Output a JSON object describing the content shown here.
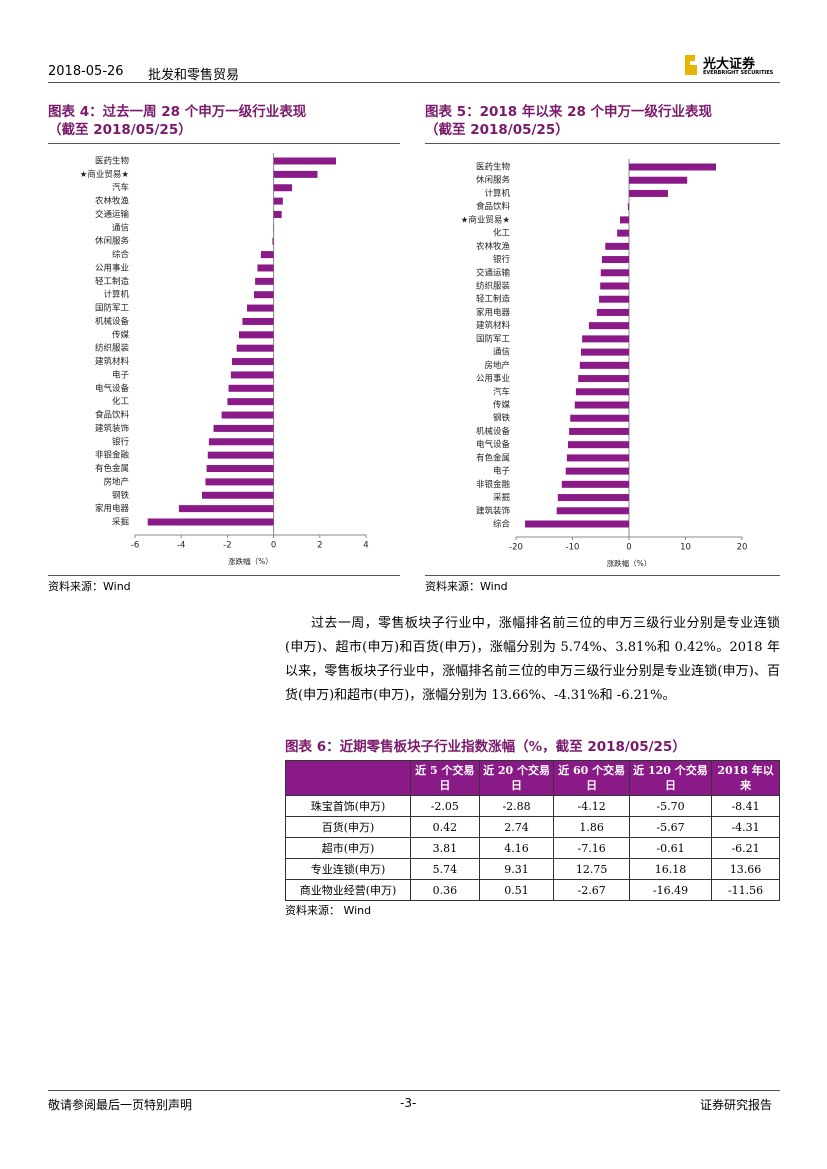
{
  "header": {
    "date": "2018-05-26",
    "industry": "批发和零售贸易",
    "logo": "光大证券",
    "logo_en": "EVERBRIGHT SECURITIES"
  },
  "chart_data": [
    {
      "type": "bar",
      "orientation": "horizontal",
      "title": "图表 4：过去一周 28 个申万一级行业表现",
      "subtitle": "（截至 2018/05/25）",
      "xlabel": "涨跌幅（%）",
      "source": "资料来源：Wind",
      "color": "#8b1a89",
      "categories": [
        "医药生物",
        "★商业贸易★",
        "汽车",
        "农林牧渔",
        "交通运输",
        "通信",
        "休闲服务",
        "综合",
        "公用事业",
        "轻工制造",
        "计算机",
        "国防军工",
        "机械设备",
        "传媒",
        "纺织服装",
        "建筑材料",
        "电子",
        "电气设备",
        "化工",
        "食品饮料",
        "建筑装饰",
        "银行",
        "非银金融",
        "有色金属",
        "房地产",
        "钢铁",
        "家用电器",
        "采掘"
      ],
      "values": [
        2.7,
        1.9,
        0.8,
        0.4,
        0.35,
        0.02,
        -0.05,
        -0.55,
        -0.7,
        -0.8,
        -0.85,
        -1.15,
        -1.35,
        -1.5,
        -1.6,
        -1.8,
        -1.85,
        -1.95,
        -2.0,
        -2.25,
        -2.6,
        -2.8,
        -2.85,
        -2.9,
        -2.95,
        -3.1,
        -4.1,
        -5.45
      ],
      "xlim": [
        -6,
        4
      ],
      "xticks": [
        -6,
        -4,
        -2,
        0,
        2,
        4
      ]
    },
    {
      "type": "bar",
      "orientation": "horizontal",
      "title": "图表 5：2018 年以来 28 个申万一级行业表现",
      "subtitle": "（截至 2018/05/25）",
      "xlabel": "涨跌幅（%）",
      "source": "资料来源：Wind",
      "color": "#8b1a89",
      "categories": [
        "医药生物",
        "休闲服务",
        "计算机",
        "食品饮料",
        "★商业贸易★",
        "化工",
        "农林牧渔",
        "银行",
        "交通运输",
        "纺织服装",
        "轻工制造",
        "家用电器",
        "建筑材料",
        "国防军工",
        "通信",
        "房地产",
        "公用事业",
        "汽车",
        "传媒",
        "钢铁",
        "机械设备",
        "电气设备",
        "有色金属",
        "电子",
        "非银金融",
        "采掘",
        "建筑装饰",
        "综合"
      ],
      "values": [
        15.4,
        10.3,
        6.9,
        -0.2,
        -1.6,
        -2.1,
        -4.2,
        -4.8,
        -5.0,
        -5.1,
        -5.3,
        -5.7,
        -7.1,
        -8.3,
        -8.5,
        -8.7,
        -9.0,
        -9.4,
        -9.6,
        -10.4,
        -10.6,
        -10.8,
        -11.0,
        -11.2,
        -11.9,
        -12.6,
        -12.8,
        -18.4
      ],
      "xlim": [
        -20,
        20
      ],
      "xticks": [
        -20,
        -10,
        0,
        10,
        20
      ]
    }
  ],
  "paragraph": "过去一周，零售板块子行业中，涨幅排名前三位的申万三级行业分别是专业连锁(申万)、超市(申万)和百货(申万)，涨幅分别为 5.74%、3.81%和 0.42%。2018 年以来，零售板块子行业中，涨幅排名前三位的申万三级行业分别是专业连锁(申万)、百货(申万)和超市(申万)，涨幅分别为 13.66%、-4.31%和 -6.21%。",
  "table": {
    "title": "图表 6：近期零售板块子行业指数涨幅（%，截至 2018/05/25）",
    "columns": [
      "近 5 个交易日",
      "近 20 个交易日",
      "近 60 个交易日",
      "近 120 个交易日",
      "2018 年以来"
    ],
    "rows": [
      [
        "珠宝首饰(申万)",
        "-2.05",
        "-2.88",
        "-4.12",
        "-5.70",
        "-8.41"
      ],
      [
        "百货(申万)",
        "0.42",
        "2.74",
        "1.86",
        "-5.67",
        "-4.31"
      ],
      [
        "超市(申万)",
        "3.81",
        "4.16",
        "-7.16",
        "-0.61",
        "-6.21"
      ],
      [
        "专业连锁(申万)",
        "5.74",
        "9.31",
        "12.75",
        "16.18",
        "13.66"
      ],
      [
        "商业物业经营(申万)",
        "0.36",
        "0.51",
        "-2.67",
        "-16.49",
        "-11.56"
      ]
    ],
    "source": "资料来源：  Wind"
  },
  "footer": {
    "left": "敬请参阅最后一页特别声明",
    "page": "-3-",
    "right": "证券研究报告"
  }
}
